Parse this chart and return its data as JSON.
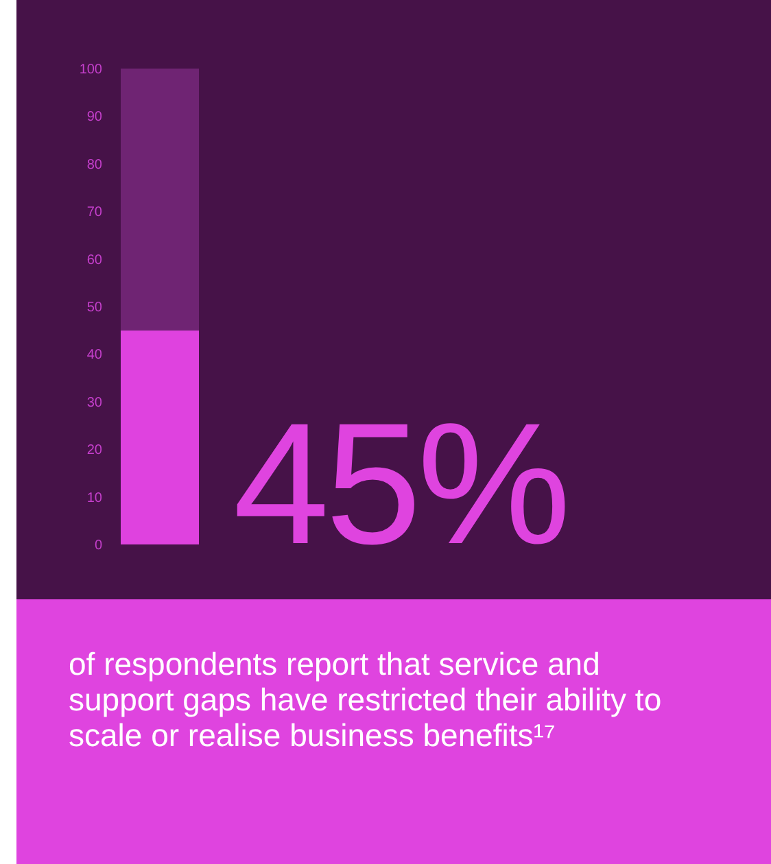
{
  "chart_data": {
    "type": "bar",
    "stacked": true,
    "categories": [
      null
    ],
    "series": [
      {
        "color": "#df42df",
        "values": [
          45
        ]
      },
      {
        "color": "#6f2473",
        "values": [
          55
        ]
      }
    ],
    "ylim": [
      0,
      100
    ],
    "yticks": [
      0,
      10,
      20,
      30,
      40,
      50,
      60,
      70,
      80,
      90,
      100
    ],
    "annotations": [
      "45%",
      "of respondents report that service and support gaps have restricted their ability to scale or realise business benefits¹⁷"
    ]
  }
}
